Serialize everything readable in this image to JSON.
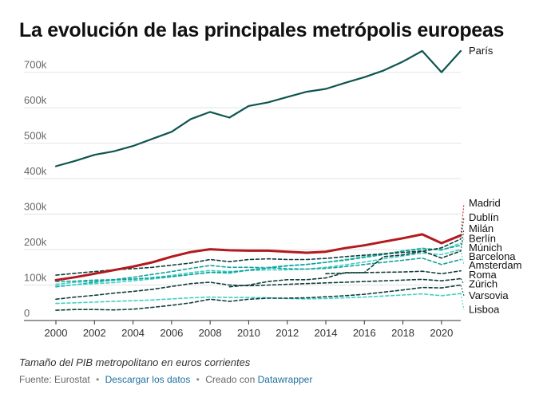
{
  "title": "La evolución de las principales metrópolis europeas",
  "subtitle": "Tamaño del PIB metropolitano en euros corrientes",
  "footer": {
    "source": "Fuente: Eurostat",
    "download": "Descargar los datos",
    "created_prefix": "Creado con",
    "created_link": "Datawrapper",
    "separator": "•"
  },
  "colors": {
    "paris": "#0f5450",
    "madrid": "#b3191e",
    "dark_dash": "#0f3f3c",
    "mid_dash": "#11a29a",
    "light_dash": "#3dd0c6",
    "grid": "#e2e2e2",
    "axis": "#333333"
  },
  "chart_data": {
    "type": "line",
    "x": [
      2000,
      2001,
      2002,
      2003,
      2004,
      2005,
      2006,
      2007,
      2008,
      2009,
      2010,
      2011,
      2012,
      2013,
      2014,
      2015,
      2016,
      2017,
      2018,
      2019,
      2020,
      2021
    ],
    "xticks": [
      2000,
      2002,
      2004,
      2006,
      2008,
      2010,
      2012,
      2014,
      2016,
      2018,
      2020
    ],
    "yticks": [
      0,
      100000,
      200000,
      300000,
      400000,
      500000,
      600000,
      700000
    ],
    "ytick_labels": [
      "0",
      "100k",
      "200k",
      "300k",
      "400k",
      "500k",
      "600k",
      "700k"
    ],
    "ylim": [
      0,
      780000
    ],
    "xlabel": "",
    "ylabel": "",
    "series": [
      {
        "name": "París",
        "style": "solid",
        "color": "#0f5450",
        "width": 2.2,
        "label_value": 760000,
        "values": [
          435000,
          450000,
          467000,
          477000,
          492000,
          512000,
          532000,
          568000,
          588000,
          572000,
          605000,
          615000,
          630000,
          645000,
          653000,
          670000,
          686000,
          705000,
          730000,
          760000,
          700000,
          760000
        ]
      },
      {
        "name": "Madrid",
        "style": "solid",
        "color": "#b3191e",
        "width": 3,
        "label_value": 330000,
        "values": [
          114000,
          122000,
          132000,
          142000,
          152000,
          164000,
          180000,
          193000,
          201000,
          198000,
          197000,
          197000,
          194000,
          191000,
          194000,
          204000,
          212000,
          222000,
          232000,
          243000,
          218000,
          240000
        ]
      },
      {
        "name": "Dublín",
        "style": "dashed",
        "color": "#0f3f3c",
        "width": 1.6,
        "label_value": 290000,
        "values": [
          null,
          null,
          null,
          null,
          null,
          null,
          null,
          null,
          null,
          95000,
          100000,
          110000,
          115000,
          115000,
          120000,
          135000,
          135000,
          180000,
          185000,
          195000,
          205000,
          230000
        ]
      },
      {
        "name": "Milán",
        "style": "dashed",
        "color": "#0f3f3c",
        "width": 1.6,
        "label_value": 258000,
        "values": [
          128000,
          133000,
          138000,
          143000,
          146000,
          150000,
          156000,
          162000,
          172000,
          166000,
          172000,
          174000,
          172000,
          172000,
          175000,
          180000,
          184000,
          188000,
          192000,
          196000,
          176000,
          196000
        ]
      },
      {
        "name": "Berlín",
        "style": "dashed",
        "color": "#11a29a",
        "width": 1.6,
        "label_value": 230000,
        "values": [
          110000,
          111000,
          114000,
          115000,
          117000,
          120000,
          124000,
          130000,
          136000,
          136000,
          142000,
          148000,
          154000,
          158000,
          164000,
          170000,
          178000,
          186000,
          196000,
          202000,
          200000,
          212000
        ]
      },
      {
        "name": "Múnich",
        "style": "dashed",
        "color": "#3dd0c6",
        "width": 1.6,
        "label_value": 205000,
        "values": [
          97000,
          101000,
          104000,
          107000,
          112000,
          117000,
          123000,
          130000,
          135000,
          133000,
          142000,
          150000,
          155000,
          158000,
          164000,
          172000,
          180000,
          188000,
          196000,
          204000,
          198000,
          218000
        ]
      },
      {
        "name": "Barcelona",
        "style": "dashed",
        "color": "#11a29a",
        "width": 1.6,
        "label_value": 180000,
        "values": [
          95000,
          101000,
          108000,
          115000,
          122000,
          130000,
          138000,
          147000,
          155000,
          150000,
          150000,
          149000,
          146000,
          145000,
          147000,
          152000,
          158000,
          164000,
          170000,
          176000,
          158000,
          172000
        ]
      },
      {
        "name": "Amsterdam",
        "style": "dashed",
        "color": "#3dd0c6",
        "width": 1.6,
        "label_value": 155000,
        "values": [
          102000,
          108000,
          111000,
          113000,
          116000,
          121000,
          127000,
          135000,
          141000,
          138000,
          141000,
          143000,
          143000,
          145000,
          150000,
          157000,
          165000,
          174000,
          182000,
          190000,
          186000,
          200000
        ]
      },
      {
        "name": "Roma",
        "style": "dashed",
        "color": "#0f3f3c",
        "width": 1.6,
        "label_value": 128000,
        "values": [
          null,
          null,
          null,
          null,
          null,
          null,
          null,
          null,
          null,
          null,
          null,
          null,
          null,
          null,
          132000,
          134000,
          135000,
          136000,
          137000,
          139000,
          132000,
          140000
        ]
      },
      {
        "name": "Zúrich",
        "style": "dashed",
        "color": "#0f3f3c",
        "width": 1.6,
        "label_value": 102000,
        "values": [
          60000,
          66000,
          71000,
          77000,
          82000,
          88000,
          96000,
          104000,
          108000,
          100000,
          98000,
          100000,
          102000,
          104000,
          106000,
          108000,
          110000,
          112000,
          114000,
          116000,
          112000,
          118000
        ]
      },
      {
        "name": "Varsovia",
        "style": "dashed",
        "color": "#0f3f3c",
        "width": 1.6,
        "label_value": 70000,
        "values": [
          29000,
          31000,
          31000,
          30000,
          32000,
          37000,
          43000,
          50000,
          60000,
          54000,
          60000,
          63000,
          63000,
          64000,
          67000,
          70000,
          74000,
          80000,
          86000,
          93000,
          92000,
          100000
        ]
      },
      {
        "name": "Lisboa",
        "style": "dashed",
        "color": "#3dd0c6",
        "width": 1.6,
        "label_value": 30000,
        "values": [
          48000,
          50000,
          52000,
          54000,
          56000,
          58000,
          61000,
          64000,
          66000,
          65000,
          65000,
          64000,
          62000,
          61000,
          62000,
          64000,
          66000,
          69000,
          72000,
          75000,
          70000,
          76000
        ]
      }
    ]
  }
}
